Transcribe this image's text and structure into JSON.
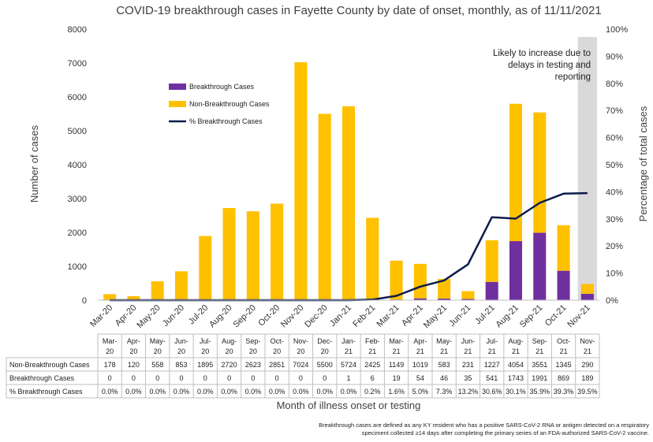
{
  "chart_data": {
    "type": "bar",
    "stacked": true,
    "title": "COVID-19 breakthrough cases in Fayette County by date of onset, monthly, as of 11/11/2021",
    "xlabel": "Month of illness onset or testing",
    "ylabel": "Number of cases",
    "y2label": "Percentage of total cases",
    "ylim": [
      0,
      8000
    ],
    "y_ticks": [
      "0",
      "1000",
      "2000",
      "3000",
      "4000",
      "5000",
      "6000",
      "7000",
      "8000"
    ],
    "y2lim": [
      0,
      100
    ],
    "y2_ticks": [
      "0%",
      "10%",
      "20%",
      "30%",
      "40%",
      "50%",
      "60%",
      "70%",
      "80%",
      "90%",
      "100%"
    ],
    "categories": [
      "Mar-20",
      "Apr-20",
      "May-20",
      "Jun-20",
      "Jul-20",
      "Aug-20",
      "Sep-20",
      "Oct-20",
      "Nov-20",
      "Dec-20",
      "Jan-21",
      "Feb-21",
      "Mar-21",
      "Apr-21",
      "May-21",
      "Jun-21",
      "Jul-21",
      "Aug-21",
      "Sep-21",
      "Oct-21",
      "Nov-21"
    ],
    "table_categories": [
      [
        "Mar-",
        "20"
      ],
      [
        "Apr-",
        "20"
      ],
      [
        "May-",
        "20"
      ],
      [
        "Jun-",
        "20"
      ],
      [
        "Jul-",
        "20"
      ],
      [
        "Aug-",
        "20"
      ],
      [
        "Sep-",
        "20"
      ],
      [
        "Oct-",
        "20"
      ],
      [
        "Nov-",
        "20"
      ],
      [
        "Dec-",
        "20"
      ],
      [
        "Jan-",
        "21"
      ],
      [
        "Feb-",
        "21"
      ],
      [
        "Mar-",
        "21"
      ],
      [
        "Apr-",
        "21"
      ],
      [
        "May-",
        "21"
      ],
      [
        "Jun-",
        "21"
      ],
      [
        "Jul-",
        "21"
      ],
      [
        "Aug-",
        "21"
      ],
      [
        "Sep-",
        "21"
      ],
      [
        "Oct-",
        "21"
      ],
      [
        "Nov-",
        "21"
      ]
    ],
    "series": [
      {
        "name": "Non-Breakthrough Cases",
        "kind": "bar",
        "color": "#FFC000",
        "values": [
          178,
          120,
          558,
          853,
          1895,
          2720,
          2623,
          2851,
          7024,
          5500,
          5724,
          2425,
          1149,
          1019,
          583,
          231,
          1227,
          4054,
          3551,
          1345,
          290
        ]
      },
      {
        "name": "Breakthrough Cases",
        "kind": "bar",
        "color": "#7030A0",
        "values": [
          0,
          0,
          0,
          0,
          0,
          0,
          0,
          0,
          0,
          0,
          1,
          6,
          19,
          54,
          46,
          35,
          541,
          1743,
          1991,
          869,
          189
        ]
      },
      {
        "name": "% Breakthrough Cases",
        "kind": "line",
        "color": "#0D1B4C",
        "axis": "secondary",
        "values": [
          0.0,
          0.0,
          0.0,
          0.0,
          0.0,
          0.0,
          0.0,
          0.0,
          0.0,
          0.0,
          0.0,
          0.2,
          1.6,
          5.0,
          7.3,
          13.2,
          30.6,
          30.1,
          35.9,
          39.3,
          39.5
        ],
        "labels": [
          "0.0%",
          "0.0%",
          "0.0%",
          "0.0%",
          "0.0%",
          "0.0%",
          "0.0%",
          "0.0%",
          "0.0%",
          "0.0%",
          "0.0%",
          "0.2%",
          "1.6%",
          "5.0%",
          "7.3%",
          "13.2%",
          "30.6%",
          "30.1%",
          "35.9%",
          "39.3%",
          "39.5%"
        ]
      }
    ],
    "legend": [
      "Breakthrough Cases",
      "Non-Breakthrough Cases",
      "% Breakthrough Cases"
    ],
    "legend_position": "upper-left",
    "highlight_category": "Nov-21",
    "highlight_color": "#D9D9D9",
    "annotation": [
      "Likely to increase due to",
      "delays in testing and",
      "reporting"
    ],
    "grid": false
  },
  "footnote": [
    "Breakthrough cases are defined as any KY resident who has a positive SARS-CoV-2 RNA or antigen detected on a respiratory",
    "speciment collected ≥14 days after completing the primary series of an FDA-authorized SARS-CoV-2 vaccine."
  ]
}
